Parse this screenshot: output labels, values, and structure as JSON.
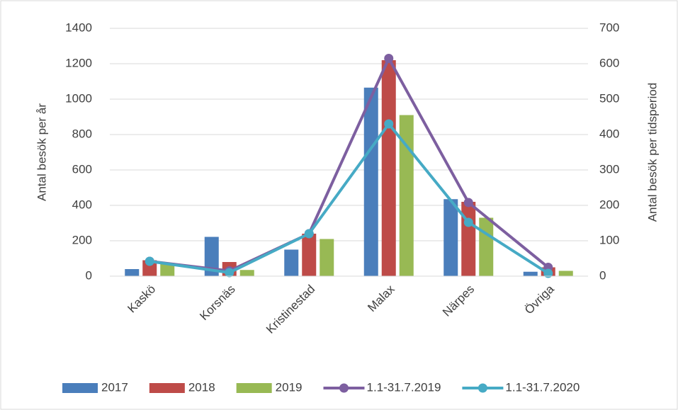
{
  "chart_data": {
    "type": "bar_line",
    "categories": [
      "Kaskö",
      "Korsnäs",
      "Kristinestad",
      "Malax",
      "Närpes",
      "Övriga"
    ],
    "series": [
      {
        "name": "2017",
        "color": "#4a7ebb",
        "type": "bar",
        "values": [
          40,
          222,
          150,
          1065,
          435,
          25
        ]
      },
      {
        "name": "2018",
        "color": "#be4b48",
        "type": "bar",
        "values": [
          90,
          80,
          240,
          1220,
          420,
          50
        ]
      },
      {
        "name": "2019",
        "color": "#98b954",
        "type": "bar",
        "values": [
          75,
          35,
          210,
          910,
          330,
          30
        ]
      },
      {
        "name": "1.1-31.7.2019",
        "color": "#7d5fa0",
        "type": "line",
        "axis": "y2",
        "values": [
          42,
          15,
          120,
          615,
          208,
          25
        ]
      },
      {
        "name": "1.1-31.7.2020",
        "color": "#46aac5",
        "type": "line",
        "axis": "y2",
        "values": [
          42,
          10,
          120,
          430,
          152,
          8
        ]
      }
    ],
    "ylabel": "Antal besök per år",
    "y2label": "Antal besök per tidsperiod",
    "ylim": [
      0,
      1400
    ],
    "yticks": [
      0,
      200,
      400,
      600,
      800,
      1000,
      1200,
      1400
    ],
    "y2lim": [
      0,
      700
    ],
    "y2ticks": [
      0,
      100,
      200,
      300,
      400,
      500,
      600,
      700
    ],
    "grid": true,
    "legend": "bottom"
  }
}
